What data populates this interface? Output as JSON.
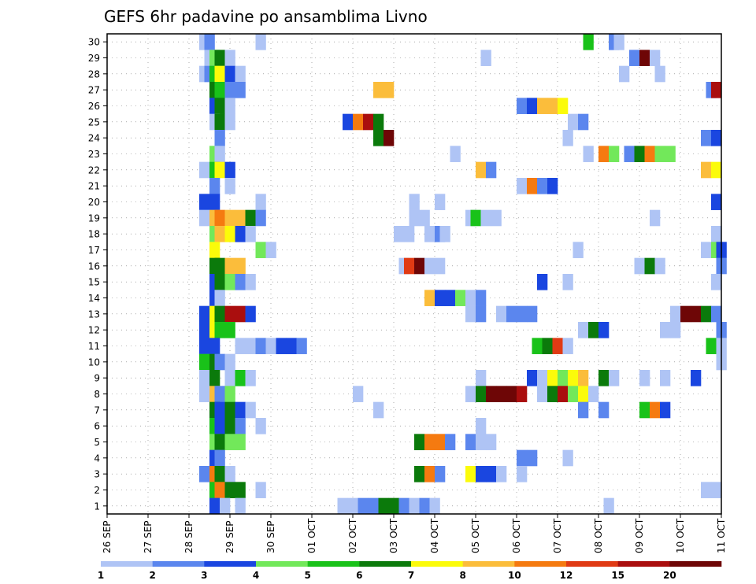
{
  "chart_data": {
    "type": "heatmap",
    "title": "GEFS 6hr padavine po ansamblima Livno",
    "x_tick_labels": [
      "26 SEP",
      "27 SEP",
      "28 SEP",
      "29 SEP",
      "30 SEP",
      "01 OCT",
      "02 OCT",
      "03 OCT",
      "04 OCT",
      "05 OCT",
      "06 OCT",
      "07 OCT",
      "08 OCT",
      "09 OCT",
      "10 OCT",
      "11 OCT"
    ],
    "y_tick_labels": [
      "1",
      "2",
      "3",
      "4",
      "5",
      "6",
      "7",
      "8",
      "9",
      "10",
      "11",
      "12",
      "13",
      "14",
      "15",
      "16",
      "17",
      "18",
      "19",
      "20",
      "21",
      "22",
      "23",
      "24",
      "25",
      "26",
      "27",
      "28",
      "29",
      "30"
    ],
    "x_range_days": [
      0,
      15
    ],
    "y_range": [
      0,
      30
    ],
    "grid": true,
    "legend": "bottom colorbar",
    "colorbar": {
      "labels": [
        "1",
        "2",
        "3",
        "4",
        "5",
        "6",
        "7",
        "8",
        "10",
        "12",
        "15",
        "20"
      ],
      "colors": [
        "#afc4f5",
        "#5b86ee",
        "#1a46e0",
        "#72e85a",
        "#19c219",
        "#0b7a0b",
        "#fbfb0a",
        "#fbbd3b",
        "#f57a10",
        "#e03a14",
        "#aa0e0e",
        "#6e0606"
      ]
    },
    "cells_format": "[member, day_offset_from_26SEP, colorbar_index]",
    "cells": [
      [
        30,
        2.375,
        0
      ],
      [
        30,
        2.5,
        1
      ],
      [
        30,
        3.75,
        0
      ],
      [
        30,
        11.75,
        4
      ],
      [
        30,
        12.375,
        1
      ],
      [
        30,
        12.5,
        0
      ],
      [
        29,
        2.5,
        0
      ],
      [
        29,
        2.625,
        3
      ],
      [
        29,
        2.75,
        5
      ],
      [
        29,
        3.0,
        0
      ],
      [
        29,
        9.25,
        0
      ],
      [
        29,
        12.875,
        1
      ],
      [
        29,
        13.125,
        11
      ],
      [
        29,
        13.375,
        0
      ],
      [
        28,
        2.375,
        0
      ],
      [
        28,
        2.5,
        1
      ],
      [
        28,
        2.625,
        4
      ],
      [
        28,
        2.75,
        6
      ],
      [
        28,
        3.0,
        2
      ],
      [
        28,
        3.25,
        0
      ],
      [
        28,
        12.625,
        0
      ],
      [
        28,
        13.5,
        0
      ],
      [
        27,
        2.625,
        5
      ],
      [
        27,
        2.75,
        4
      ],
      [
        27,
        3.0,
        1
      ],
      [
        27,
        3.25,
        1
      ],
      [
        27,
        6.625,
        7
      ],
      [
        27,
        6.875,
        7
      ],
      [
        27,
        14.75,
        1
      ],
      [
        27,
        14.875,
        10
      ],
      [
        26,
        2.625,
        2
      ],
      [
        26,
        2.75,
        5
      ],
      [
        26,
        3.0,
        0
      ],
      [
        26,
        10.125,
        1
      ],
      [
        26,
        10.375,
        2
      ],
      [
        26,
        10.625,
        7
      ],
      [
        26,
        10.875,
        7
      ],
      [
        26,
        11.125,
        6
      ],
      [
        25,
        2.625,
        0
      ],
      [
        25,
        2.75,
        5
      ],
      [
        25,
        3.0,
        0
      ],
      [
        25,
        5.875,
        2
      ],
      [
        25,
        6.125,
        8
      ],
      [
        25,
        6.375,
        10
      ],
      [
        25,
        6.625,
        5
      ],
      [
        25,
        11.375,
        0
      ],
      [
        25,
        11.625,
        1
      ],
      [
        24,
        2.75,
        1
      ],
      [
        24,
        6.625,
        5
      ],
      [
        24,
        6.875,
        11
      ],
      [
        24,
        11.25,
        0
      ],
      [
        24,
        14.625,
        1
      ],
      [
        24,
        14.875,
        2
      ],
      [
        23,
        2.625,
        3
      ],
      [
        23,
        2.75,
        0
      ],
      [
        23,
        8.5,
        0
      ],
      [
        23,
        11.75,
        0
      ],
      [
        23,
        12.125,
        8
      ],
      [
        23,
        12.375,
        3
      ],
      [
        23,
        12.75,
        1
      ],
      [
        23,
        13.0,
        5
      ],
      [
        23,
        13.25,
        8
      ],
      [
        23,
        13.5,
        3
      ],
      [
        23,
        13.75,
        3
      ],
      [
        22,
        2.375,
        0
      ],
      [
        22,
        2.625,
        4
      ],
      [
        22,
        2.75,
        6
      ],
      [
        22,
        3.0,
        2
      ],
      [
        22,
        9.125,
        7
      ],
      [
        22,
        9.375,
        1
      ],
      [
        22,
        14.625,
        7
      ],
      [
        22,
        14.875,
        6
      ],
      [
        21,
        2.625,
        1
      ],
      [
        21,
        3.0,
        0
      ],
      [
        21,
        10.125,
        0
      ],
      [
        21,
        10.375,
        8
      ],
      [
        21,
        10.625,
        1
      ],
      [
        21,
        10.875,
        2
      ],
      [
        20,
        2.375,
        2
      ],
      [
        20,
        2.625,
        2
      ],
      [
        20,
        3.75,
        0
      ],
      [
        20,
        7.5,
        0
      ],
      [
        20,
        8.125,
        0
      ],
      [
        20,
        14.875,
        2
      ],
      [
        19,
        2.375,
        0
      ],
      [
        19,
        2.625,
        7
      ],
      [
        19,
        2.75,
        8
      ],
      [
        19,
        3.0,
        7
      ],
      [
        19,
        3.25,
        7
      ],
      [
        19,
        3.5,
        5
      ],
      [
        19,
        3.75,
        1
      ],
      [
        19,
        7.5,
        0
      ],
      [
        19,
        7.75,
        0
      ],
      [
        19,
        8.875,
        0
      ],
      [
        19,
        9.0,
        4
      ],
      [
        19,
        9.25,
        0
      ],
      [
        19,
        9.5,
        0
      ],
      [
        19,
        13.375,
        0
      ],
      [
        18,
        2.625,
        3
      ],
      [
        18,
        2.75,
        7
      ],
      [
        18,
        3.0,
        6
      ],
      [
        18,
        3.25,
        2
      ],
      [
        18,
        3.5,
        0
      ],
      [
        18,
        7.125,
        0
      ],
      [
        18,
        7.375,
        0
      ],
      [
        18,
        7.875,
        0
      ],
      [
        18,
        8.125,
        1
      ],
      [
        18,
        8.25,
        0
      ],
      [
        18,
        14.875,
        0
      ],
      [
        17,
        2.625,
        6
      ],
      [
        17,
        3.75,
        3
      ],
      [
        17,
        4.0,
        0
      ],
      [
        17,
        11.5,
        0
      ],
      [
        17,
        14.625,
        0
      ],
      [
        17,
        14.875,
        3
      ],
      [
        17,
        15.0,
        2
      ],
      [
        16,
        2.625,
        5
      ],
      [
        16,
        2.75,
        5
      ],
      [
        16,
        3.0,
        7
      ],
      [
        16,
        3.25,
        7
      ],
      [
        16,
        7.25,
        0
      ],
      [
        16,
        7.375,
        9
      ],
      [
        16,
        7.625,
        11
      ],
      [
        16,
        7.875,
        0
      ],
      [
        16,
        8.125,
        0
      ],
      [
        16,
        13.0,
        0
      ],
      [
        16,
        13.25,
        5
      ],
      [
        16,
        13.5,
        0
      ],
      [
        16,
        15.0,
        1
      ],
      [
        15,
        2.625,
        2
      ],
      [
        15,
        2.75,
        5
      ],
      [
        15,
        3.0,
        3
      ],
      [
        15,
        3.25,
        1
      ],
      [
        15,
        3.5,
        0
      ],
      [
        15,
        10.625,
        2
      ],
      [
        15,
        11.25,
        0
      ],
      [
        15,
        14.875,
        0
      ],
      [
        14,
        2.625,
        2
      ],
      [
        14,
        2.75,
        0
      ],
      [
        14,
        7.875,
        7
      ],
      [
        14,
        8.125,
        2
      ],
      [
        14,
        8.375,
        2
      ],
      [
        14,
        8.625,
        3
      ],
      [
        14,
        8.875,
        0
      ],
      [
        14,
        9.125,
        1
      ],
      [
        13,
        2.375,
        2
      ],
      [
        13,
        2.625,
        6
      ],
      [
        13,
        2.75,
        5
      ],
      [
        13,
        3.0,
        10
      ],
      [
        13,
        3.25,
        10
      ],
      [
        13,
        3.5,
        2
      ],
      [
        13,
        8.875,
        0
      ],
      [
        13,
        9.125,
        1
      ],
      [
        13,
        9.625,
        0
      ],
      [
        13,
        9.875,
        1
      ],
      [
        13,
        10.125,
        1
      ],
      [
        13,
        10.375,
        1
      ],
      [
        13,
        13.875,
        0
      ],
      [
        13,
        14.125,
        11
      ],
      [
        13,
        14.375,
        11
      ],
      [
        13,
        14.625,
        5
      ],
      [
        13,
        14.875,
        1
      ],
      [
        12,
        2.375,
        2
      ],
      [
        12,
        2.625,
        6
      ],
      [
        12,
        2.75,
        4
      ],
      [
        12,
        3.0,
        4
      ],
      [
        12,
        11.625,
        0
      ],
      [
        12,
        11.875,
        5
      ],
      [
        12,
        12.125,
        2
      ],
      [
        12,
        13.625,
        0
      ],
      [
        12,
        13.875,
        0
      ],
      [
        12,
        15.0,
        1
      ],
      [
        11,
        2.375,
        2
      ],
      [
        11,
        2.625,
        2
      ],
      [
        11,
        3.25,
        0
      ],
      [
        11,
        3.5,
        0
      ],
      [
        11,
        3.75,
        1
      ],
      [
        11,
        4.0,
        0
      ],
      [
        11,
        4.25,
        2
      ],
      [
        11,
        4.5,
        2
      ],
      [
        11,
        4.75,
        1
      ],
      [
        11,
        10.5,
        4
      ],
      [
        11,
        10.75,
        5
      ],
      [
        11,
        11.0,
        9
      ],
      [
        11,
        11.25,
        0
      ],
      [
        11,
        14.75,
        4
      ],
      [
        11,
        15.0,
        0
      ],
      [
        10,
        2.375,
        4
      ],
      [
        10,
        2.625,
        5
      ],
      [
        10,
        2.75,
        1
      ],
      [
        10,
        3.0,
        0
      ],
      [
        10,
        15.0,
        0
      ],
      [
        9,
        2.375,
        0
      ],
      [
        9,
        2.625,
        5
      ],
      [
        9,
        3.0,
        0
      ],
      [
        9,
        3.25,
        4
      ],
      [
        9,
        3.5,
        0
      ],
      [
        9,
        9.125,
        0
      ],
      [
        9,
        10.375,
        2
      ],
      [
        9,
        10.625,
        0
      ],
      [
        9,
        10.875,
        6
      ],
      [
        9,
        11.125,
        3
      ],
      [
        9,
        11.375,
        6
      ],
      [
        9,
        11.625,
        7
      ],
      [
        9,
        12.125,
        5
      ],
      [
        9,
        12.375,
        0
      ],
      [
        9,
        13.125,
        0
      ],
      [
        9,
        13.625,
        0
      ],
      [
        9,
        14.375,
        2
      ],
      [
        8,
        2.375,
        0
      ],
      [
        8,
        2.625,
        7
      ],
      [
        8,
        2.75,
        1
      ],
      [
        8,
        3.0,
        3
      ],
      [
        8,
        6.125,
        0
      ],
      [
        8,
        8.875,
        0
      ],
      [
        8,
        9.125,
        5
      ],
      [
        8,
        9.375,
        11
      ],
      [
        8,
        9.625,
        11
      ],
      [
        8,
        9.875,
        11
      ],
      [
        8,
        10.125,
        10
      ],
      [
        8,
        10.625,
        0
      ],
      [
        8,
        10.875,
        5
      ],
      [
        8,
        11.125,
        10
      ],
      [
        8,
        11.375,
        3
      ],
      [
        8,
        11.625,
        6
      ],
      [
        8,
        11.875,
        0
      ],
      [
        7,
        2.625,
        5
      ],
      [
        7,
        2.75,
        2
      ],
      [
        7,
        3.0,
        5
      ],
      [
        7,
        3.25,
        2
      ],
      [
        7,
        3.5,
        0
      ],
      [
        7,
        6.625,
        0
      ],
      [
        7,
        11.625,
        1
      ],
      [
        7,
        12.125,
        1
      ],
      [
        7,
        13.125,
        4
      ],
      [
        7,
        13.375,
        8
      ],
      [
        7,
        13.625,
        2
      ],
      [
        6,
        2.625,
        4
      ],
      [
        6,
        2.75,
        2
      ],
      [
        6,
        3.0,
        5
      ],
      [
        6,
        3.25,
        1
      ],
      [
        6,
        3.75,
        0
      ],
      [
        6,
        9.125,
        0
      ],
      [
        5,
        2.625,
        3
      ],
      [
        5,
        2.75,
        5
      ],
      [
        5,
        3.0,
        3
      ],
      [
        5,
        3.25,
        3
      ],
      [
        5,
        7.625,
        5
      ],
      [
        5,
        7.875,
        8
      ],
      [
        5,
        8.125,
        8
      ],
      [
        5,
        8.375,
        1
      ],
      [
        5,
        8.875,
        1
      ],
      [
        5,
        9.125,
        0
      ],
      [
        5,
        9.375,
        0
      ],
      [
        4,
        2.625,
        2
      ],
      [
        4,
        2.75,
        1
      ],
      [
        4,
        10.125,
        1
      ],
      [
        4,
        10.375,
        1
      ],
      [
        4,
        11.25,
        0
      ],
      [
        3,
        2.375,
        1
      ],
      [
        3,
        2.625,
        8
      ],
      [
        3,
        2.75,
        5
      ],
      [
        3,
        3.0,
        0
      ],
      [
        3,
        7.625,
        5
      ],
      [
        3,
        7.875,
        8
      ],
      [
        3,
        8.125,
        1
      ],
      [
        3,
        8.875,
        6
      ],
      [
        3,
        9.125,
        2
      ],
      [
        3,
        9.375,
        2
      ],
      [
        3,
        9.625,
        0
      ],
      [
        3,
        10.125,
        0
      ],
      [
        2,
        2.625,
        4
      ],
      [
        2,
        2.75,
        8
      ],
      [
        2,
        3.0,
        5
      ],
      [
        2,
        3.25,
        5
      ],
      [
        2,
        3.75,
        0
      ],
      [
        2,
        14.625,
        0
      ],
      [
        2,
        14.875,
        0
      ],
      [
        1,
        2.625,
        2
      ],
      [
        1,
        2.875,
        0
      ],
      [
        1,
        3.25,
        0
      ],
      [
        1,
        5.75,
        0
      ],
      [
        1,
        6.0,
        0
      ],
      [
        1,
        6.25,
        1
      ],
      [
        1,
        6.5,
        1
      ],
      [
        1,
        6.75,
        5
      ],
      [
        1,
        7.0,
        5
      ],
      [
        1,
        7.25,
        1
      ],
      [
        1,
        7.5,
        0
      ],
      [
        1,
        7.75,
        1
      ],
      [
        1,
        8.0,
        0
      ],
      [
        1,
        12.25,
        0
      ]
    ]
  }
}
